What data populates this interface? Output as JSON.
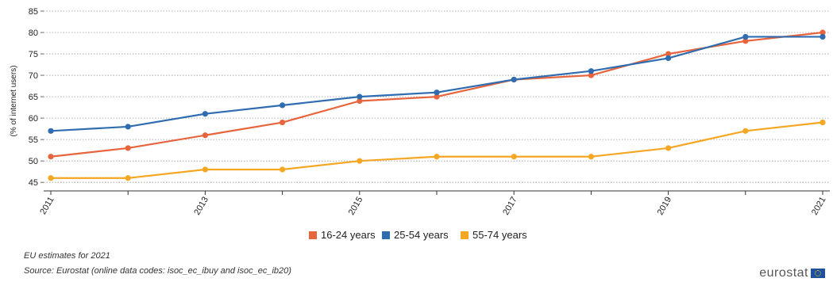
{
  "chart_data": {
    "type": "line",
    "title": "",
    "xlabel": "",
    "ylabel": "(% of internet users)",
    "x": [
      2011,
      2012,
      2013,
      2014,
      2015,
      2016,
      2017,
      2018,
      2019,
      2020,
      2021
    ],
    "x_tick_labels": [
      "2011",
      "2013",
      "2015",
      "2017",
      "2019",
      "2021"
    ],
    "x_tick_values": [
      2011,
      2013,
      2015,
      2017,
      2019,
      2021
    ],
    "y_ticks": [
      45,
      50,
      55,
      60,
      65,
      70,
      75,
      80,
      85
    ],
    "ylim": [
      43,
      85
    ],
    "grid": "horizontal-dotted",
    "legend_position": "bottom-center",
    "series": [
      {
        "name": "16-24 years",
        "color": "#e8643c",
        "values": [
          51,
          53,
          56,
          59,
          64,
          65,
          69,
          70,
          75,
          78,
          80
        ]
      },
      {
        "name": "25-54 years",
        "color": "#2f6db0",
        "values": [
          57,
          58,
          61,
          63,
          65,
          66,
          69,
          71,
          74,
          79,
          79
        ]
      },
      {
        "name": "55-74 years",
        "color": "#f5a623",
        "values": [
          46,
          46,
          48,
          48,
          50,
          51,
          51,
          51,
          53,
          57,
          59
        ]
      }
    ]
  },
  "notes": {
    "line1": "EU estimates for 2021",
    "line2": "Source: Eurostat (online data codes: isoc_ec_ibuy and isoc_ec_ib20)"
  },
  "logo": {
    "text": "eurostat",
    "icon": "eu-flag-icon"
  }
}
